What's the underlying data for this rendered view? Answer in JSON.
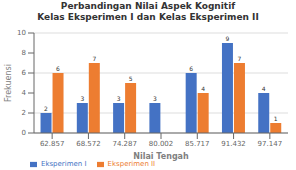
{
  "chart_data": {
    "type": "bar",
    "title": "Perbandingan Nilai Aspek Kognitif\nKelas Eksperimen I dan Kelas Eksperimen II",
    "xlabel": "Nilai Tengah",
    "ylabel": "Frekuensi",
    "categories": [
      "62.857",
      "68.572",
      "74.287",
      "80.002",
      "85.717",
      "91.432",
      "97.147"
    ],
    "series": [
      {
        "name": "Eksperimen I",
        "color": "#4472C4",
        "values": [
          2,
          3,
          3,
          3,
          6,
          9,
          4
        ]
      },
      {
        "name": "Eksperimen II",
        "color": "#ED7D31",
        "values": [
          6,
          7,
          5,
          0,
          4,
          7,
          1
        ]
      }
    ],
    "ylim": [
      0,
      10
    ],
    "yticks": [
      0,
      2,
      4,
      6,
      8,
      10
    ],
    "grid": true,
    "legend": "lower left",
    "data_labels": true
  }
}
